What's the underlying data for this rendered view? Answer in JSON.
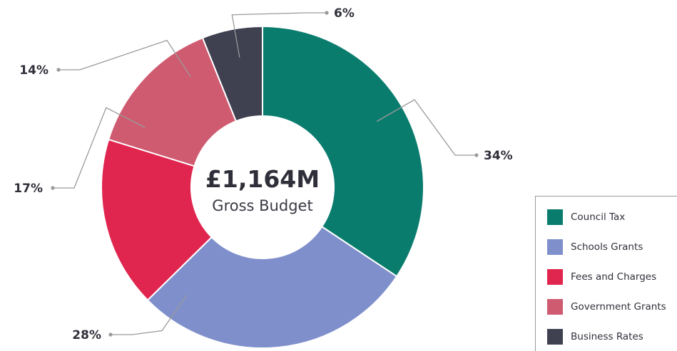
{
  "chart_data": {
    "type": "pie",
    "variant": "donut",
    "center": {
      "value": "£1,164M",
      "label": "Gross Budget"
    },
    "slices": [
      {
        "name": "Council Tax",
        "value": 34,
        "label": "34%",
        "color": "#0a7c6e"
      },
      {
        "name": "Schools Grants",
        "value": 28,
        "label": "28%",
        "color": "#7f8fcb"
      },
      {
        "name": "Fees and Charges",
        "value": 17,
        "label": "17%",
        "color": "#e0264f"
      },
      {
        "name": "Government Grants",
        "value": 14,
        "label": "14%",
        "color": "#cf5b70"
      },
      {
        "name": "Business Rates",
        "value": 6,
        "label": "6%",
        "color": "#3f4050"
      }
    ],
    "legend_position": "bottom-right"
  }
}
